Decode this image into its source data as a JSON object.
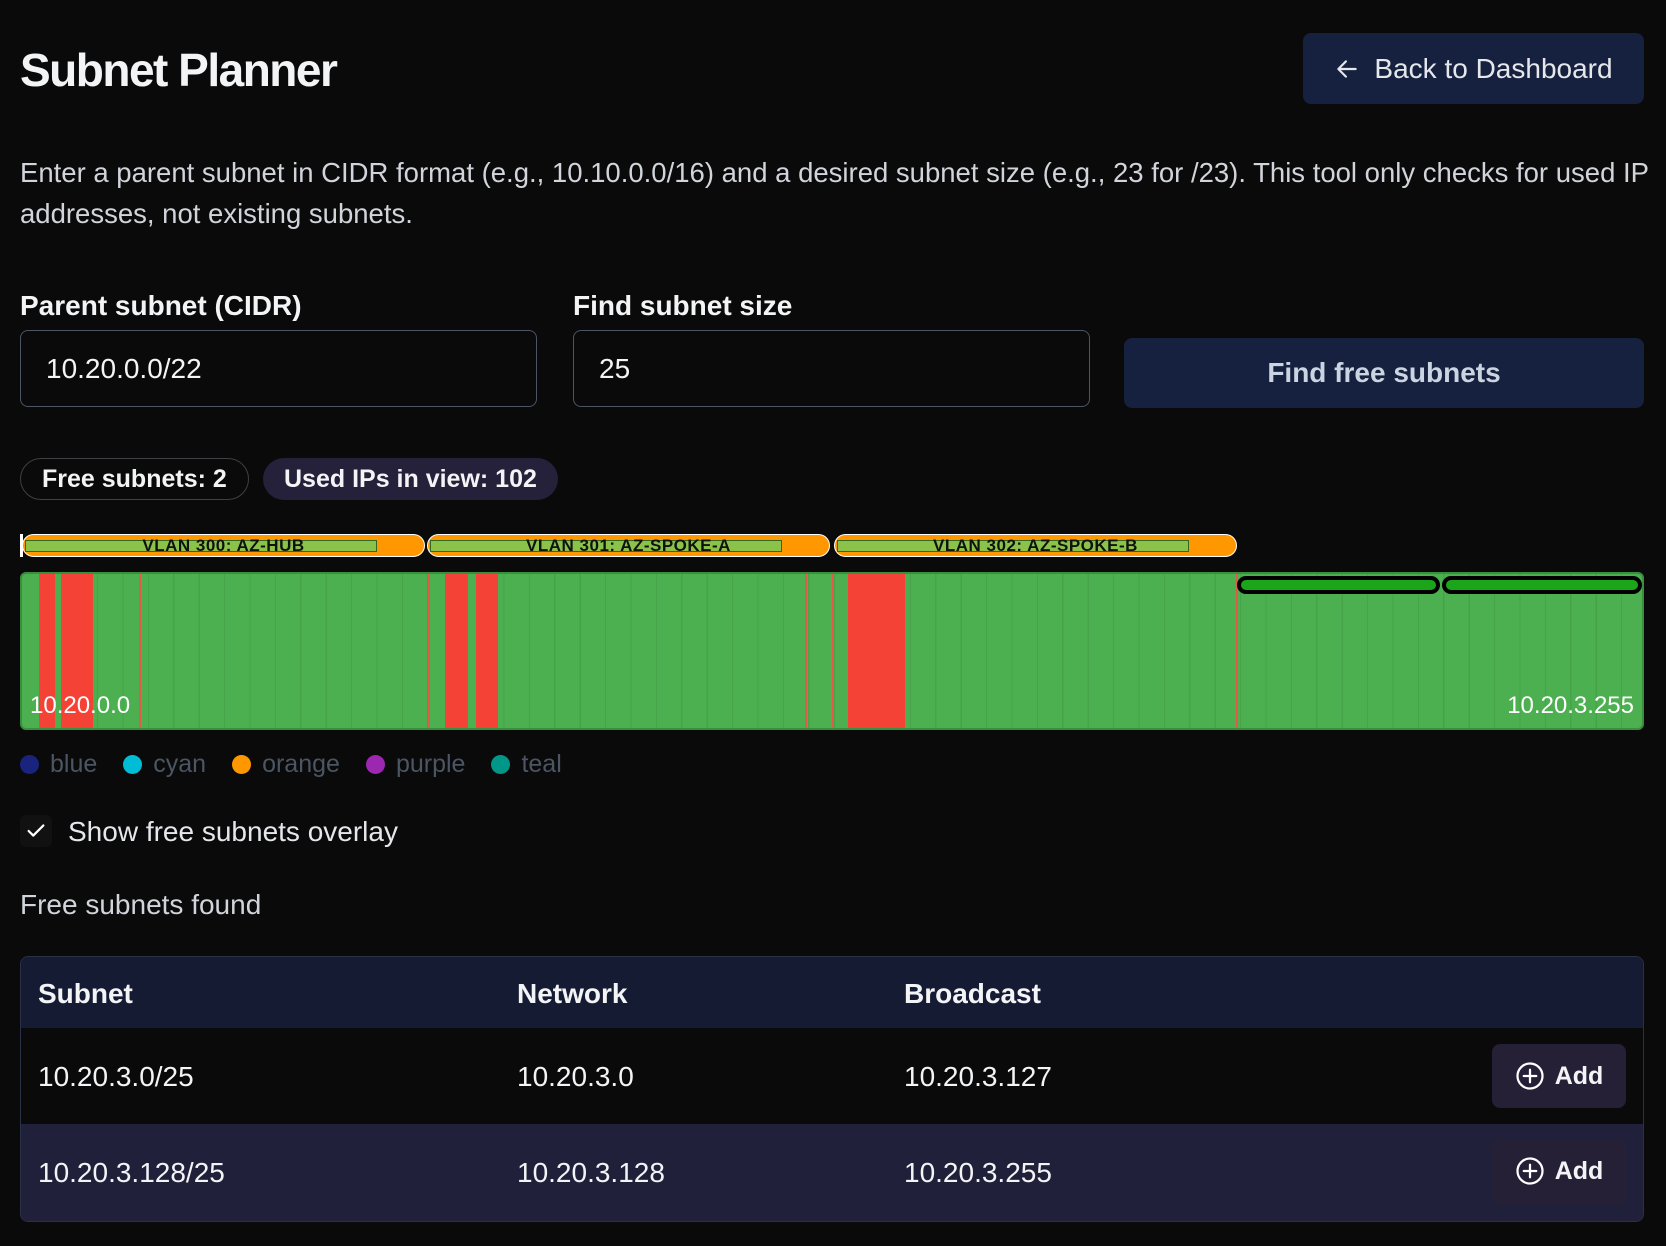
{
  "header": {
    "title": "Subnet Planner",
    "back_button": "Back to Dashboard"
  },
  "description": "Enter a parent subnet in CIDR format (e.g., 10.10.0.0/16) and a desired subnet size (e.g., 23 for /23). This tool only checks for used IP addresses, not existing subnets.",
  "form": {
    "parent_label": "Parent subnet (CIDR)",
    "parent_value": "10.20.0.0/22",
    "size_label": "Find subnet size",
    "size_value": "25",
    "submit": "Find free subnets"
  },
  "stats": {
    "free": "Free subnets: 2",
    "used": "Used IPs in view: 102"
  },
  "map": {
    "vlans": [
      "VLAN 300: AZ-HUB",
      "VLAN 301: AZ-SPOKE-A",
      "VLAN 302: AZ-SPOKE-B"
    ],
    "start": "10.20.0.0",
    "end": "10.20.3.255",
    "legend": [
      "blue",
      "cyan",
      "orange",
      "purple",
      "teal"
    ]
  },
  "overlay_toggle": "Show free subnets overlay",
  "results": {
    "title": "Free subnets found",
    "columns": [
      "Subnet",
      "Network",
      "Broadcast"
    ],
    "rows": [
      [
        "10.20.3.0/25",
        "10.20.3.0",
        "10.20.3.127",
        "Add"
      ],
      [
        "10.20.3.128/25",
        "10.20.3.128",
        "10.20.3.255",
        "Add"
      ]
    ]
  }
}
